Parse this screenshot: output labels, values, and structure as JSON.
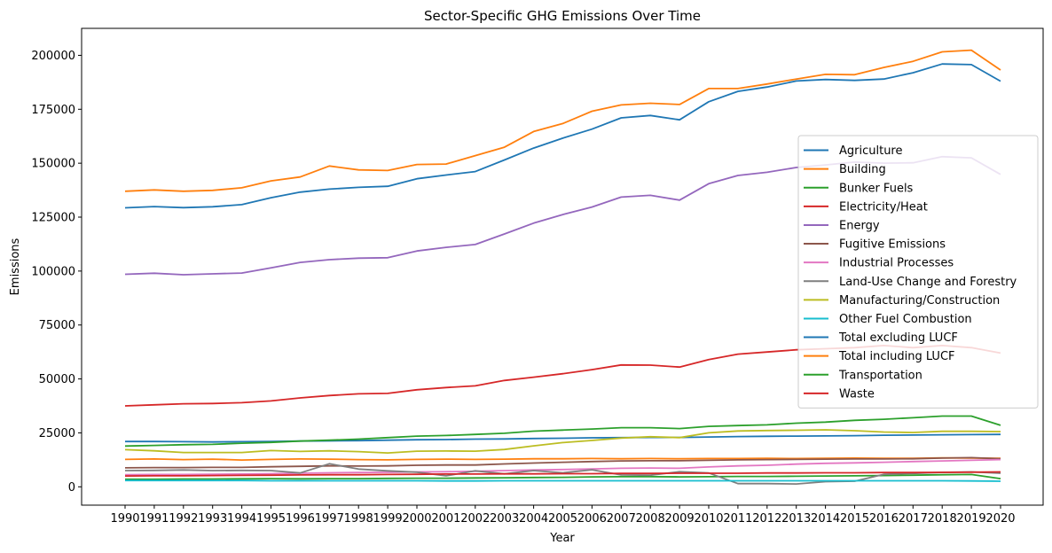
{
  "chart_data": {
    "type": "line",
    "title": "Sector-Specific GHG Emissions Over Time",
    "xlabel": "Year",
    "ylabel": "Emissions",
    "x": [
      "1990",
      "1991",
      "1992",
      "1993",
      "1994",
      "1995",
      "1996",
      "1997",
      "1998",
      "1999",
      "2000",
      "2001",
      "2002",
      "2003",
      "2004",
      "2005",
      "2006",
      "2007",
      "2008",
      "2009",
      "2010",
      "2011",
      "2012",
      "2013",
      "2014",
      "2015",
      "2016",
      "2017",
      "2018",
      "2019",
      "2020"
    ],
    "ylim": [
      -8500,
      212500
    ],
    "yticks": [
      0,
      25000,
      50000,
      75000,
      100000,
      125000,
      150000,
      175000,
      200000
    ],
    "ytick_labels": [
      "0",
      "25000",
      "50000",
      "75000",
      "100000",
      "125000",
      "150000",
      "175000",
      "200000"
    ],
    "grid": false,
    "legend_position": "center-right",
    "series": [
      {
        "name": "Agriculture",
        "color": "#1f77b4",
        "values": [
          21000,
          21000,
          20900,
          20800,
          20900,
          21000,
          21200,
          21300,
          21400,
          21600,
          21800,
          21900,
          22100,
          22200,
          22400,
          22500,
          22700,
          22800,
          22900,
          22900,
          23100,
          23300,
          23400,
          23500,
          23600,
          23700,
          23900,
          24000,
          24100,
          24200,
          24300
        ]
      },
      {
        "name": "Building",
        "color": "#ff7f0e",
        "values": [
          12700,
          12900,
          12600,
          12800,
          12400,
          12700,
          12900,
          12800,
          12600,
          12500,
          12700,
          12800,
          12700,
          12800,
          13000,
          13000,
          13100,
          13000,
          13100,
          13000,
          13100,
          13100,
          13200,
          13100,
          13200,
          13300,
          13200,
          13200,
          13400,
          13300,
          13200
        ]
      },
      {
        "name": "Bunker Fuels",
        "color": "#2ca02c",
        "values": [
          3500,
          3500,
          3600,
          3600,
          3700,
          3800,
          3700,
          3800,
          3800,
          3900,
          4000,
          4000,
          4100,
          4200,
          4300,
          4400,
          4600,
          4700,
          4700,
          4600,
          4700,
          4800,
          4800,
          4900,
          5000,
          5100,
          5200,
          5400,
          5600,
          5700,
          3800
        ]
      },
      {
        "name": "Electricity/Heat",
        "color": "#d62728",
        "values": [
          37500,
          38000,
          38500,
          38600,
          39000,
          39800,
          41200,
          42300,
          43100,
          43300,
          45000,
          46000,
          46800,
          49300,
          50800,
          52400,
          54300,
          56500,
          56400,
          55500,
          59000,
          61500,
          62500,
          63500,
          64000,
          64500,
          65500,
          64500,
          65500,
          64500,
          62000
        ]
      },
      {
        "name": "Energy",
        "color": "#9467bd",
        "values": [
          98500,
          99000,
          98300,
          98700,
          99100,
          101500,
          104000,
          105300,
          106000,
          106200,
          109300,
          111000,
          112300,
          117200,
          122200,
          126200,
          129700,
          134300,
          135100,
          132900,
          140500,
          144300,
          145800,
          148000,
          149200,
          150500,
          150000,
          150200,
          153000,
          152500,
          144800
        ]
      },
      {
        "name": "Fugitive Emissions",
        "color": "#8c564b",
        "values": [
          8800,
          8900,
          8900,
          9000,
          9000,
          9300,
          9500,
          9700,
          9600,
          9700,
          10000,
          10100,
          10100,
          10600,
          11000,
          11400,
          11700,
          12000,
          12100,
          12100,
          12300,
          12500,
          12600,
          12700,
          12800,
          12900,
          12900,
          13000,
          13300,
          13500,
          13000
        ]
      },
      {
        "name": "Industrial Processes",
        "color": "#e377c2",
        "values": [
          5600,
          5700,
          5700,
          5800,
          5900,
          6100,
          6300,
          6500,
          6600,
          6700,
          6900,
          7000,
          7200,
          7500,
          7800,
          8000,
          8300,
          8600,
          8700,
          8600,
          9200,
          9700,
          10000,
          10500,
          10900,
          11100,
          11400,
          11700,
          12000,
          12300,
          12600
        ]
      },
      {
        "name": "Land-Use Change and Forestry",
        "color": "#7f7f7f",
        "values": [
          7500,
          7600,
          7800,
          7500,
          7600,
          7500,
          6400,
          10700,
          8200,
          7400,
          6800,
          5100,
          7400,
          6000,
          7500,
          6500,
          7900,
          5500,
          5400,
          7000,
          6400,
          1500,
          1500,
          1300,
          2400,
          2600,
          5800,
          6200,
          6700,
          6900,
          6300
        ]
      },
      {
        "name": "Manufacturing/Construction",
        "color": "#bcbd22",
        "values": [
          17200,
          16700,
          15900,
          15900,
          15900,
          16800,
          16400,
          16700,
          16300,
          15700,
          16500,
          16600,
          16500,
          17300,
          19000,
          20500,
          21500,
          22600,
          23200,
          22800,
          25000,
          25900,
          26100,
          26200,
          26400,
          26000,
          25400,
          25200,
          25700,
          25700,
          25600
        ]
      },
      {
        "name": "Other Fuel Combustion",
        "color": "#17becf",
        "values": [
          2900,
          2900,
          2900,
          2900,
          2900,
          2800,
          2800,
          2800,
          2800,
          2800,
          2800,
          2700,
          2700,
          2800,
          2800,
          2800,
          2800,
          2800,
          2800,
          2800,
          2800,
          2800,
          2800,
          2800,
          2800,
          2800,
          2800,
          2800,
          2800,
          2700,
          2600
        ]
      },
      {
        "name": "Total excluding LUCF",
        "color": "#1f77b4",
        "values": [
          129300,
          129900,
          129400,
          129800,
          130800,
          134000,
          136600,
          138000,
          138800,
          139300,
          142800,
          144500,
          146100,
          151500,
          157000,
          161600,
          165800,
          171000,
          172100,
          170100,
          178500,
          183300,
          185300,
          188100,
          188800,
          188400,
          189000,
          191900,
          196000,
          195700,
          188000
        ]
      },
      {
        "name": "Total including LUCF",
        "color": "#ff7f0e",
        "values": [
          137000,
          137600,
          137000,
          137400,
          138600,
          141800,
          143600,
          148700,
          146900,
          146600,
          149400,
          149600,
          153500,
          157400,
          164700,
          168400,
          174100,
          177000,
          177800,
          177200,
          184600,
          184600,
          186700,
          189000,
          191200,
          191000,
          194400,
          197200,
          201600,
          202400,
          193200
        ]
      },
      {
        "name": "Transportation",
        "color": "#2ca02c",
        "values": [
          18900,
          19200,
          19500,
          19700,
          20200,
          20600,
          21200,
          21600,
          22100,
          22800,
          23500,
          23800,
          24300,
          24800,
          25800,
          26300,
          26800,
          27400,
          27400,
          27000,
          28000,
          28400,
          28700,
          29500,
          30000,
          30800,
          31300,
          32000,
          32800,
          32800,
          28500
        ]
      },
      {
        "name": "Waste",
        "color": "#d62728",
        "values": [
          5000,
          5100,
          5100,
          5200,
          5300,
          5400,
          5500,
          5600,
          5600,
          5700,
          5800,
          5900,
          5900,
          6000,
          6000,
          6100,
          6100,
          6200,
          6200,
          6300,
          6300,
          6300,
          6400,
          6400,
          6500,
          6500,
          6600,
          6600,
          6700,
          6800,
          6900
        ]
      }
    ]
  }
}
